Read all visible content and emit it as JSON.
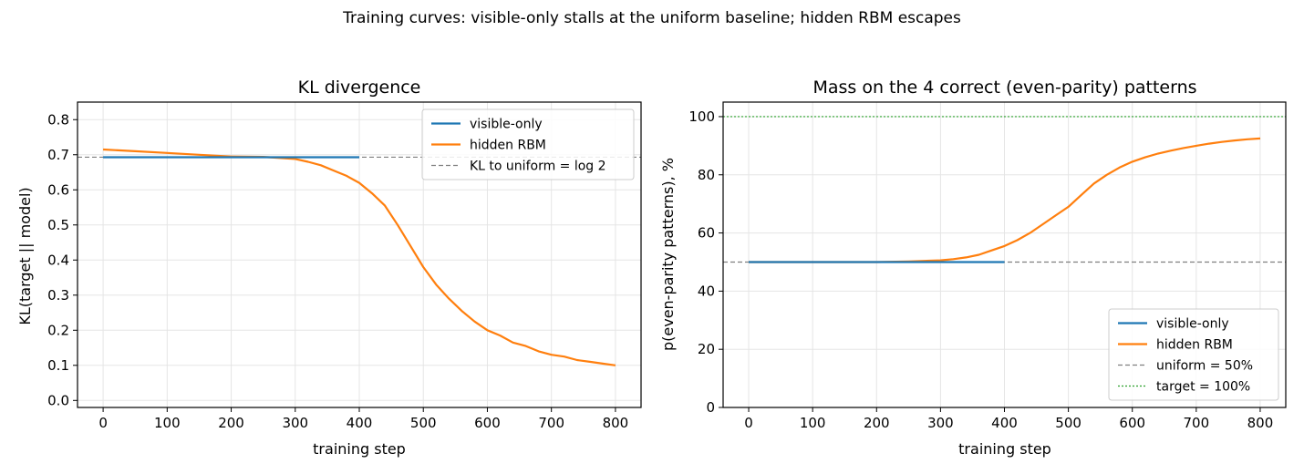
{
  "suptitle": "Training curves: visible-only stalls at the uniform baseline; hidden RBM escapes",
  "colors": {
    "visible": "#1f77b4",
    "hidden": "#ff7f0e",
    "ref_gray": "#7f7f7f",
    "target_green": "#2ca02c",
    "grid": "#e5e5e5"
  },
  "chart_data": [
    {
      "type": "line",
      "title": "KL divergence",
      "xlabel": "training step",
      "ylabel": "KL(target || model)",
      "xlim": [
        -40,
        840
      ],
      "ylim": [
        -0.02,
        0.85
      ],
      "xticks": [
        0,
        100,
        200,
        300,
        400,
        500,
        600,
        700,
        800
      ],
      "yticks": [
        0.0,
        0.1,
        0.2,
        0.3,
        0.4,
        0.5,
        0.6,
        0.7,
        0.8
      ],
      "grid": true,
      "legend_loc": "upper right",
      "series": [
        {
          "name": "visible-only",
          "x": [
            0,
            400
          ],
          "y": [
            0.693,
            0.693
          ]
        },
        {
          "name": "hidden RBM",
          "x": [
            0,
            50,
            100,
            150,
            200,
            250,
            300,
            320,
            340,
            360,
            380,
            400,
            420,
            440,
            460,
            480,
            500,
            520,
            540,
            560,
            580,
            600,
            620,
            640,
            660,
            680,
            700,
            720,
            740,
            760,
            780,
            800
          ],
          "y": [
            0.715,
            0.71,
            0.705,
            0.7,
            0.695,
            0.694,
            0.688,
            0.68,
            0.67,
            0.655,
            0.64,
            0.62,
            0.59,
            0.555,
            0.5,
            0.44,
            0.38,
            0.33,
            0.29,
            0.255,
            0.225,
            0.2,
            0.185,
            0.165,
            0.155,
            0.14,
            0.13,
            0.125,
            0.115,
            0.11,
            0.105,
            0.1
          ]
        }
      ],
      "reference_lines": [
        {
          "name": "KL to uniform = log 2",
          "y": 0.693,
          "style": "dashed"
        }
      ]
    },
    {
      "type": "line",
      "title": "Mass on the 4 correct (even-parity) patterns",
      "xlabel": "training step",
      "ylabel": "p(even-parity patterns), %",
      "xlim": [
        -40,
        840
      ],
      "ylim": [
        0,
        105
      ],
      "xticks": [
        0,
        100,
        200,
        300,
        400,
        500,
        600,
        700,
        800
      ],
      "yticks": [
        0,
        20,
        40,
        60,
        80,
        100
      ],
      "grid": true,
      "legend_loc": "lower right",
      "series": [
        {
          "name": "visible-only",
          "x": [
            0,
            400
          ],
          "y": [
            50,
            50
          ]
        },
        {
          "name": "hidden RBM",
          "x": [
            0,
            100,
            200,
            250,
            300,
            320,
            340,
            360,
            380,
            400,
            420,
            440,
            460,
            480,
            500,
            520,
            540,
            560,
            580,
            600,
            620,
            640,
            660,
            680,
            700,
            720,
            740,
            760,
            780,
            800
          ],
          "y": [
            50,
            50,
            50,
            50.2,
            50.6,
            51,
            51.6,
            52.5,
            54,
            55.5,
            57.5,
            60,
            63,
            66,
            69,
            73,
            77,
            80,
            82.5,
            84.5,
            86,
            87.3,
            88.3,
            89.2,
            90,
            90.7,
            91.3,
            91.8,
            92.2,
            92.5
          ]
        }
      ],
      "reference_lines": [
        {
          "name": "uniform = 50%",
          "y": 50,
          "style": "dashed"
        },
        {
          "name": "target = 100%",
          "y": 100,
          "style": "dotted"
        }
      ]
    }
  ]
}
